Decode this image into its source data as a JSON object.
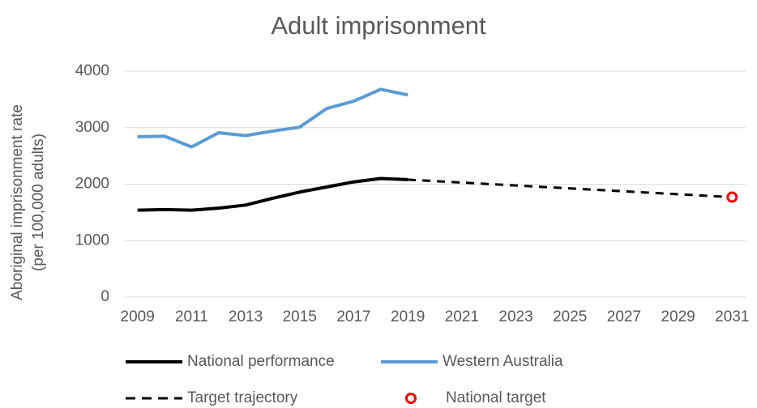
{
  "chart_data": {
    "type": "line",
    "title": "Adult imprisonment",
    "ylabel": [
      "Aboriginal imprisonment rate",
      "(per 100,000 adults)"
    ],
    "xlim": [
      2008.5,
      2031.5
    ],
    "xticks": [
      2009,
      2011,
      2013,
      2015,
      2017,
      2019,
      2021,
      2023,
      2025,
      2027,
      2029,
      2031
    ],
    "ylim": [
      0,
      4000
    ],
    "yticks": [
      0,
      1000,
      2000,
      3000,
      4000
    ],
    "grid": true,
    "series": [
      {
        "name": "National performance",
        "color": "#000000",
        "style": "solid",
        "x": [
          2009,
          2010,
          2011,
          2012,
          2013,
          2014,
          2015,
          2016,
          2017,
          2018,
          2019
        ],
        "values": [
          1540,
          1550,
          1540,
          1575,
          1630,
          1750,
          1860,
          1950,
          2040,
          2100,
          2080
        ]
      },
      {
        "name": "Western Australia",
        "color": "#5b9bd5",
        "style": "solid",
        "x": [
          2009,
          2010,
          2011,
          2012,
          2013,
          2014,
          2015,
          2016,
          2017,
          2018,
          2019
        ],
        "values": [
          2840,
          2850,
          2660,
          2910,
          2860,
          2940,
          3010,
          3340,
          3470,
          3680,
          3580
        ]
      },
      {
        "name": "Target trajectory",
        "color": "#000000",
        "style": "dashed",
        "x": [
          2019,
          2031
        ],
        "values": [
          2080,
          1770
        ]
      },
      {
        "name": "National target",
        "color": "#ff0000",
        "style": "marker",
        "x": [
          2031
        ],
        "values": [
          1770
        ]
      }
    ]
  }
}
